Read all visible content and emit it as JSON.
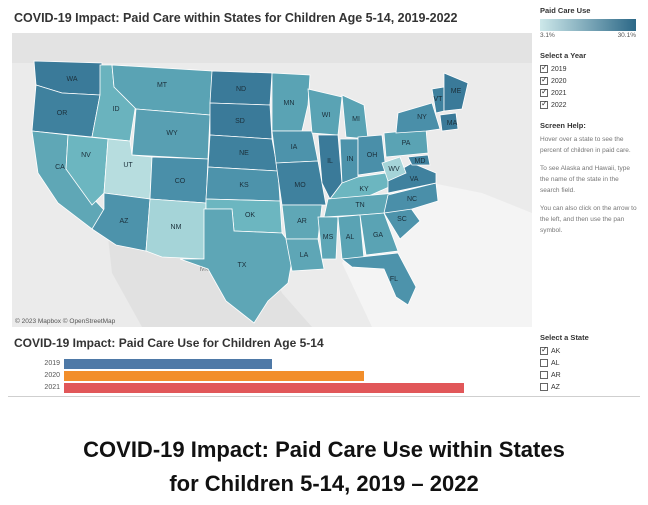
{
  "map": {
    "title": "COVID-19 Impact: Paid Care within States for Children Age 5-14, 2019-2022",
    "attribution": "© 2023 Mapbox © OpenStreetMap",
    "mexico_label": "Mexico",
    "states": [
      {
        "abbr": "WA",
        "color": "#3a7a99"
      },
      {
        "abbr": "OR",
        "color": "#3f819e"
      },
      {
        "abbr": "CA",
        "color": "#5fa7b6"
      },
      {
        "abbr": "NV",
        "color": "#6cb6c0"
      },
      {
        "abbr": "ID",
        "color": "#6ab3be"
      },
      {
        "abbr": "MT",
        "color": "#5aa3b4"
      },
      {
        "abbr": "WY",
        "color": "#589fb2"
      },
      {
        "abbr": "UT",
        "color": "#b7dddf"
      },
      {
        "abbr": "AZ",
        "color": "#4d93ab"
      },
      {
        "abbr": "CO",
        "color": "#4a8fa9"
      },
      {
        "abbr": "NM",
        "color": "#a5d4d8"
      },
      {
        "abbr": "ND",
        "color": "#3a7a99"
      },
      {
        "abbr": "SD",
        "color": "#3a7a99"
      },
      {
        "abbr": "NE",
        "color": "#3f819e"
      },
      {
        "abbr": "KS",
        "color": "#4d93ab"
      },
      {
        "abbr": "OK",
        "color": "#6cb6c0"
      },
      {
        "abbr": "TX",
        "color": "#5ea6b6"
      },
      {
        "abbr": "MN",
        "color": "#5aa3b4"
      },
      {
        "abbr": "IA",
        "color": "#4d93ab"
      },
      {
        "abbr": "MO",
        "color": "#3f819e"
      },
      {
        "abbr": "AR",
        "color": "#5fa7b6"
      },
      {
        "abbr": "LA",
        "color": "#5ea6b6"
      },
      {
        "abbr": "WI",
        "color": "#5aa3b4"
      },
      {
        "abbr": "IL",
        "color": "#3a7a99"
      },
      {
        "abbr": "MI",
        "color": "#5aa3b4"
      },
      {
        "abbr": "IN",
        "color": "#4d93ab"
      },
      {
        "abbr": "OH",
        "color": "#4a8fa9"
      },
      {
        "abbr": "KY",
        "color": "#6cb6c0"
      },
      {
        "abbr": "TN",
        "color": "#5fa7b6"
      },
      {
        "abbr": "MS",
        "color": "#5ea6b6"
      },
      {
        "abbr": "AL",
        "color": "#5aa3b4"
      },
      {
        "abbr": "GA",
        "color": "#5aa3b4"
      },
      {
        "abbr": "FL",
        "color": "#4d93ab"
      },
      {
        "abbr": "SC",
        "color": "#4d93ab"
      },
      {
        "abbr": "NC",
        "color": "#4a8fa9"
      },
      {
        "abbr": "VA",
        "color": "#3f819e"
      },
      {
        "abbr": "WV",
        "color": "#a5d4d8"
      },
      {
        "abbr": "PA",
        "color": "#5aa3b4"
      },
      {
        "abbr": "NY",
        "color": "#4a8fa9"
      },
      {
        "abbr": "VT",
        "color": "#3f819e"
      },
      {
        "abbr": "MA",
        "color": "#3a7a99"
      },
      {
        "abbr": "ME",
        "color": "#3a7a99"
      },
      {
        "abbr": "MD",
        "color": "#3f819e"
      }
    ]
  },
  "legend": {
    "title": "Paid Care Use",
    "min_label": "3.1%",
    "max_label": "30.1%",
    "color_low": "#cde8ea",
    "color_high": "#2c6887"
  },
  "year_filter": {
    "title": "Select a Year",
    "options": [
      {
        "label": "2019",
        "checked": true
      },
      {
        "label": "2020",
        "checked": true
      },
      {
        "label": "2021",
        "checked": true
      },
      {
        "label": "2022",
        "checked": true
      }
    ]
  },
  "help": {
    "title": "Screen Help:",
    "paragraphs": [
      "Hover over a state to see the percent of children in paid care.",
      "To see Alaska and Hawaii, type the name of the state in the search field.",
      "You can also click on the arrow to the left, and then use the pan symbol."
    ]
  },
  "bar_chart": {
    "title": "COVID-19 Impact: Paid Care Use for Children Age 5-14"
  },
  "chart_data": {
    "type": "bar",
    "orientation": "horizontal",
    "categories": [
      "2019",
      "2020",
      "2021"
    ],
    "values": [
      0.52,
      0.75,
      1.0
    ],
    "colors": [
      "#4e79a7",
      "#f28e2b",
      "#e15759"
    ],
    "value_scale_note": "relative bar length; no value labels shown"
  },
  "state_filter": {
    "title": "Select a State",
    "options": [
      {
        "label": "AK",
        "checked": true
      },
      {
        "label": "AL",
        "checked": false
      },
      {
        "label": "AR",
        "checked": false
      },
      {
        "label": "AZ",
        "checked": false
      }
    ]
  },
  "caption": {
    "line1": "COVID-19 Impact: Paid Care Use within States",
    "line2": "for Children 5-14, 2019 – 2022"
  }
}
